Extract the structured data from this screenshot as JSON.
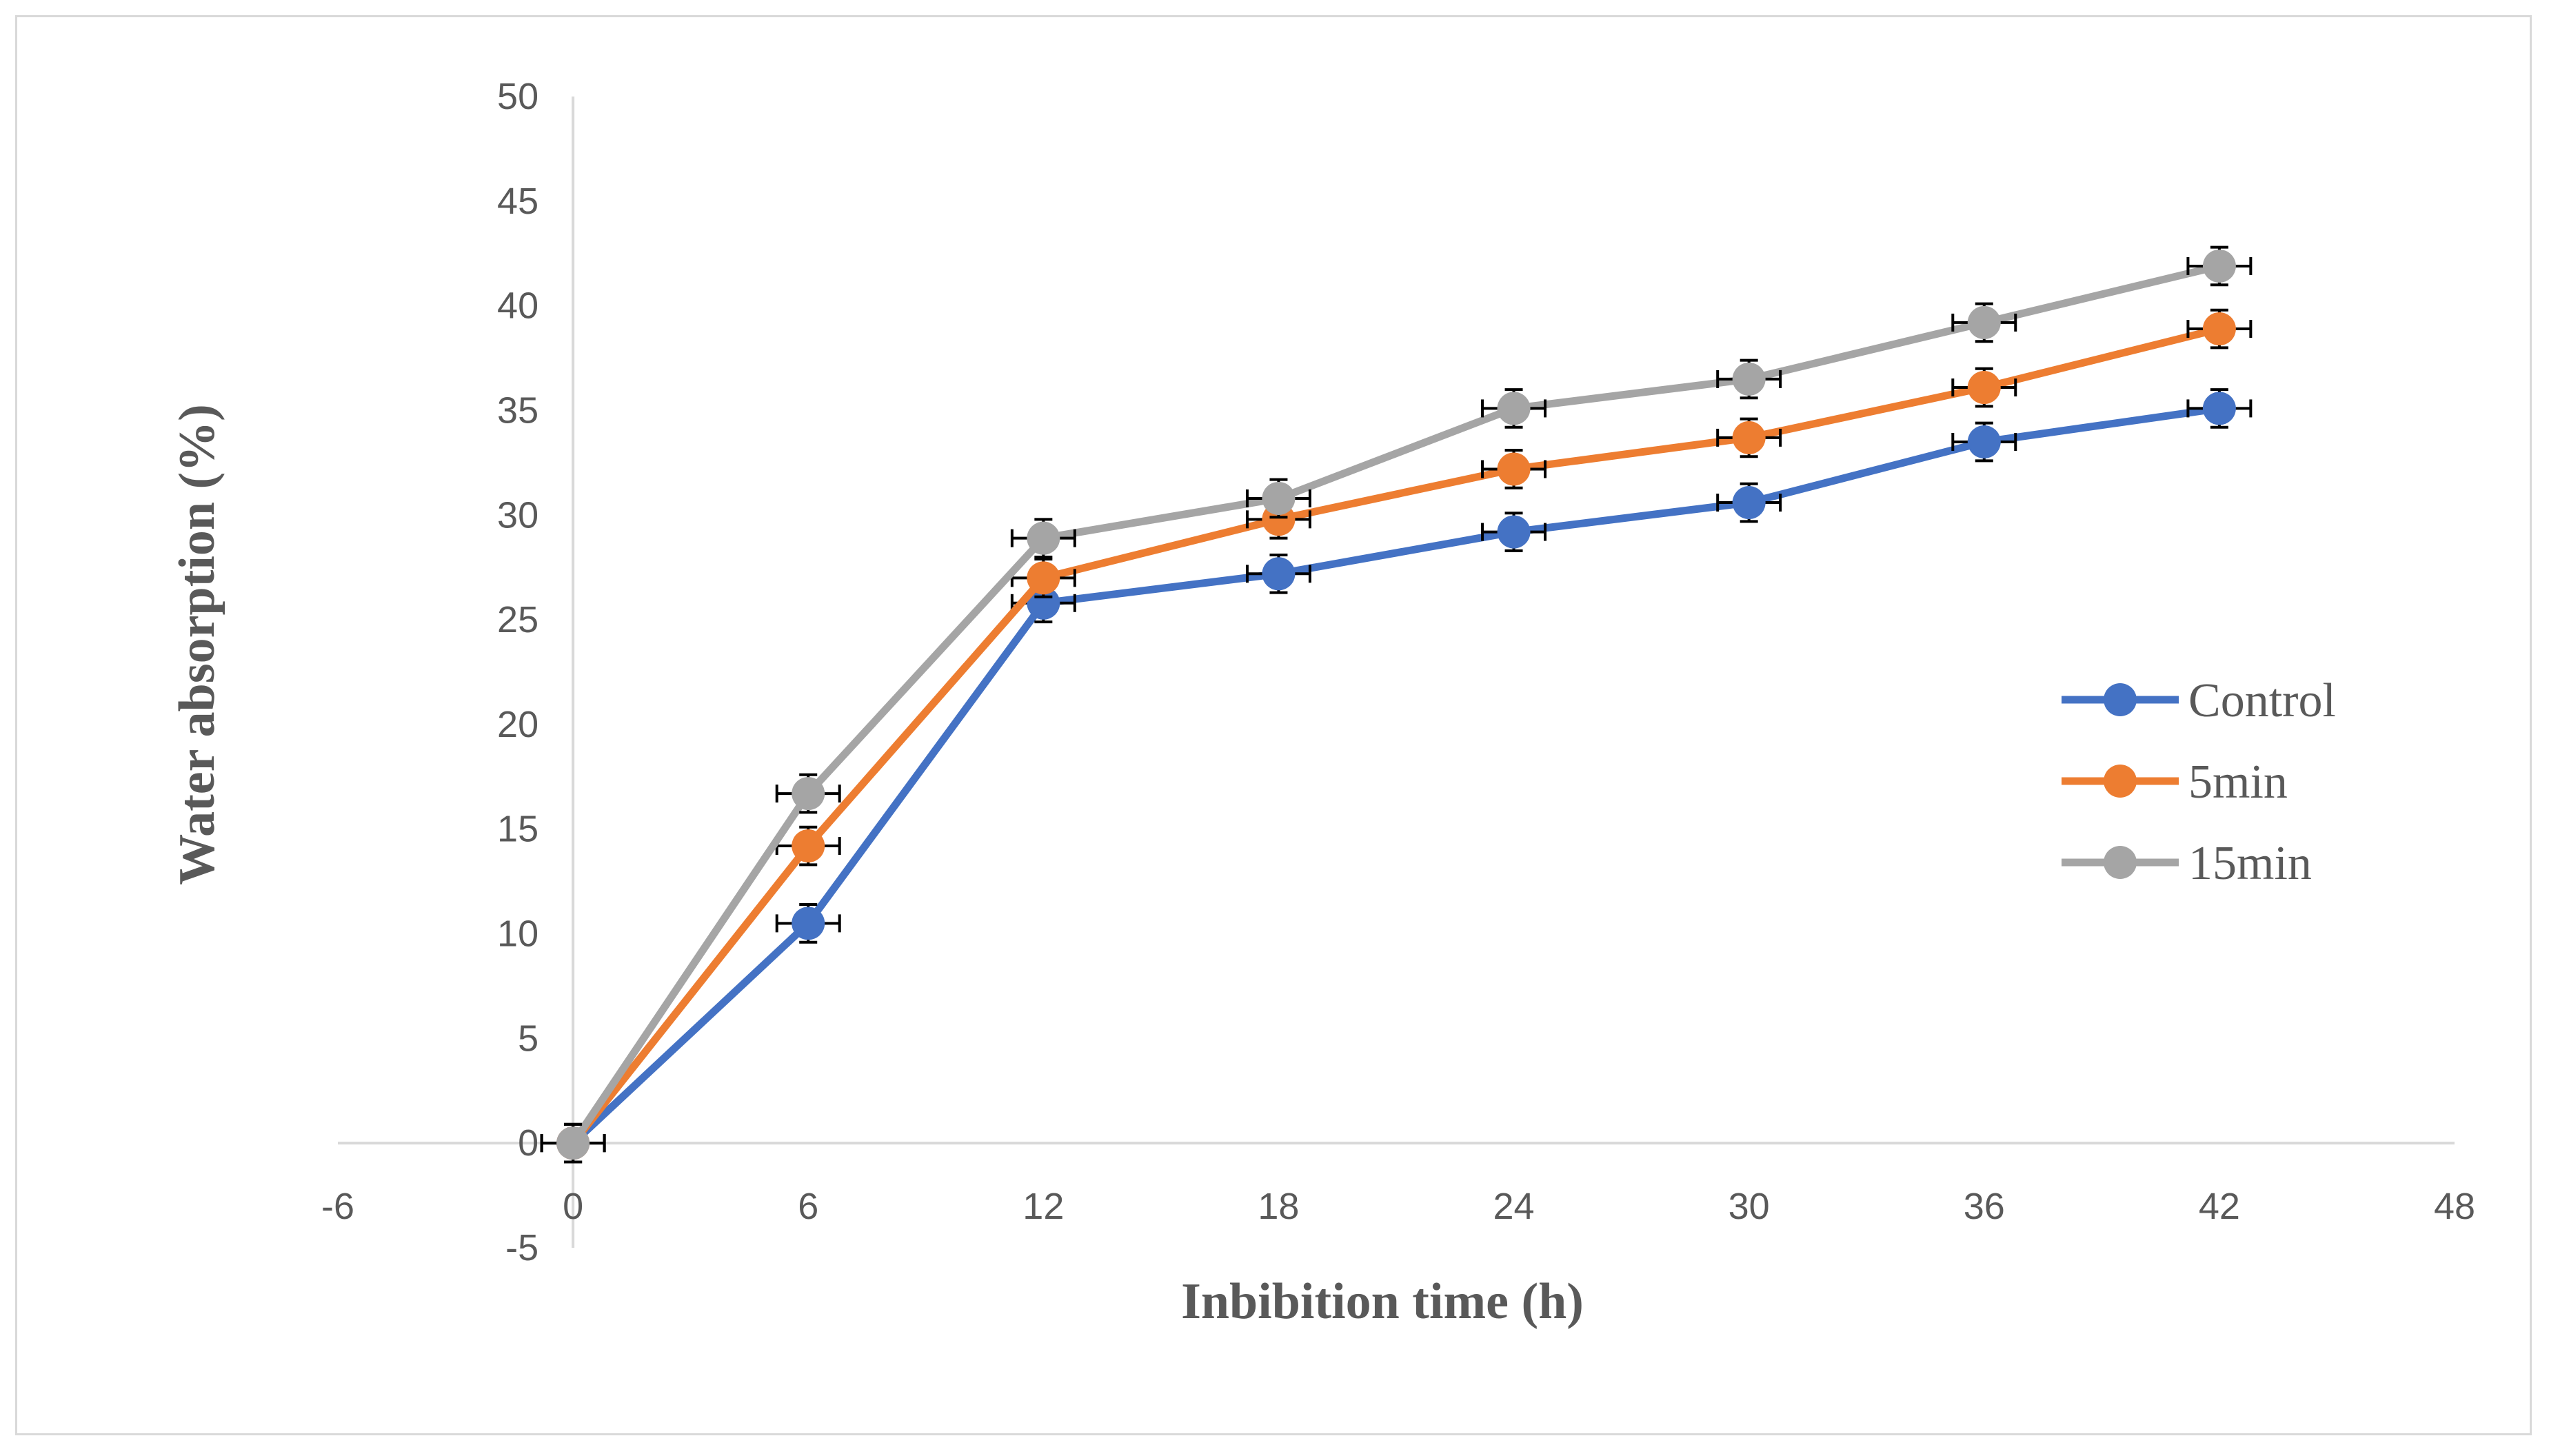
{
  "chart_data": {
    "type": "scatter",
    "title": "",
    "xlabel": "Inbibition time (h)",
    "ylabel": "Water absorption (%)",
    "xlim": [
      -6,
      48
    ],
    "ylim": [
      -5,
      50
    ],
    "x_ticks": [
      -6,
      0,
      6,
      12,
      18,
      24,
      30,
      36,
      42,
      48
    ],
    "y_ticks": [
      -5,
      0,
      5,
      10,
      15,
      20,
      25,
      30,
      35,
      40,
      45,
      50
    ],
    "x_tick_labels": [
      "-6",
      "0",
      "6",
      "12",
      "18",
      "24",
      "30",
      "36",
      "42",
      "48"
    ],
    "y_tick_labels": [
      "-5",
      "0",
      "5",
      "10",
      "15",
      "20",
      "25",
      "30",
      "35",
      "40",
      "45",
      "50"
    ],
    "grid": false,
    "legend_position": "right",
    "error_bars": {
      "x": 0.8,
      "y": 0.9
    },
    "x": [
      0,
      6,
      12,
      18,
      24,
      30,
      36,
      42
    ],
    "series": [
      {
        "name": "Control",
        "color": "#4472C4",
        "values": [
          0,
          10.5,
          25.8,
          27.2,
          29.2,
          30.6,
          33.5,
          35.1
        ]
      },
      {
        "name": "5min",
        "color": "#ED7D31",
        "values": [
          0,
          14.2,
          27.0,
          29.8,
          32.2,
          33.7,
          36.1,
          38.9
        ]
      },
      {
        "name": "15min",
        "color": "#A5A5A5",
        "values": [
          0,
          16.7,
          28.9,
          30.8,
          35.1,
          36.5,
          39.2,
          41.9
        ]
      }
    ]
  }
}
